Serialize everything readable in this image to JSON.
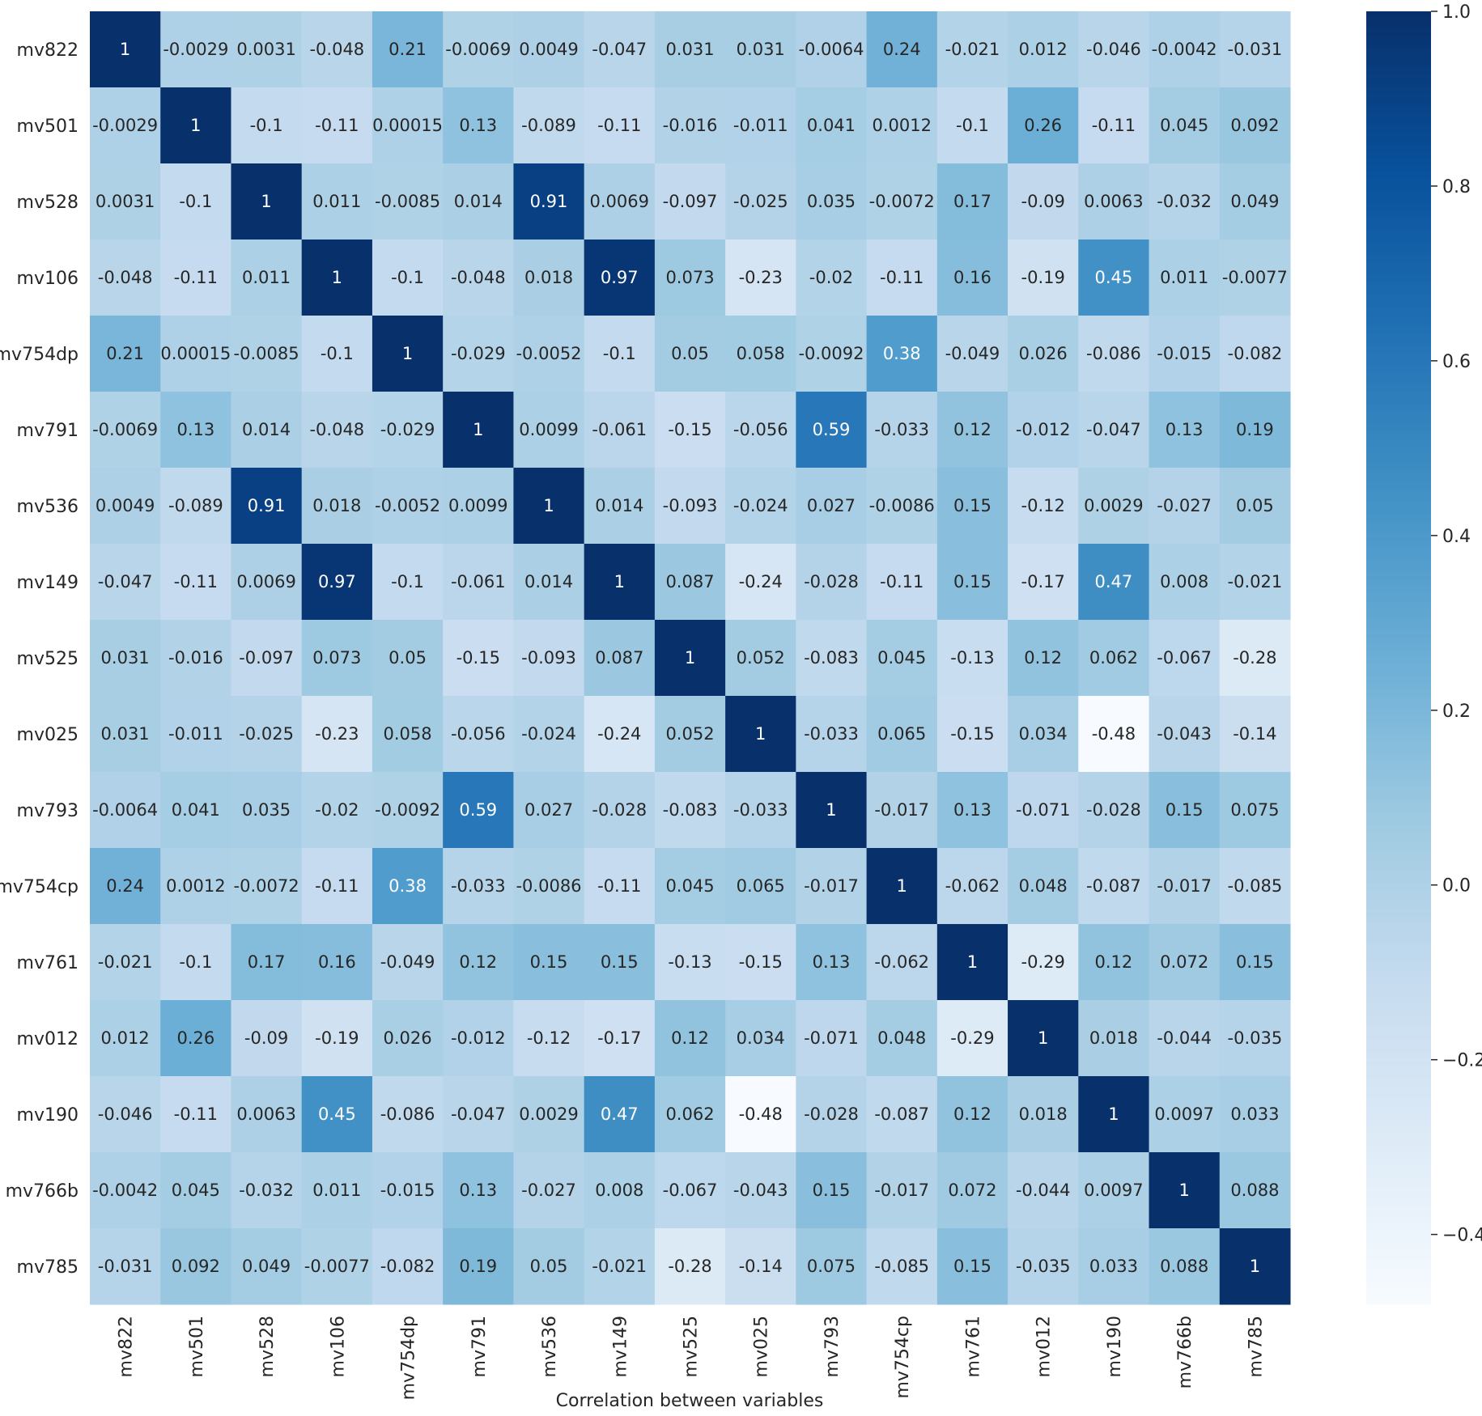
{
  "chart_data": {
    "type": "heatmap",
    "title": "",
    "xlabel": "Correlation between variables",
    "ylabel": "",
    "variables": [
      "mv822",
      "mv501",
      "mv528",
      "mv106",
      "mv754dp",
      "mv791",
      "mv536",
      "mv149",
      "mv525",
      "mv025",
      "mv793",
      "mv754cp",
      "mv761",
      "mv012",
      "mv190",
      "mv766b",
      "mv785"
    ],
    "values": [
      [
        "1",
        "-0.0029",
        "0.0031",
        "-0.048",
        "0.21",
        "-0.0069",
        "0.0049",
        "-0.047",
        "0.031",
        "0.031",
        "-0.0064",
        "0.24",
        "-0.021",
        "0.012",
        "-0.046",
        "-0.0042",
        "-0.031"
      ],
      [
        "-0.0029",
        "1",
        "-0.1",
        "-0.11",
        "0.00015",
        "0.13",
        "-0.089",
        "-0.11",
        "-0.016",
        "-0.011",
        "0.041",
        "0.0012",
        "-0.1",
        "0.26",
        "-0.11",
        "0.045",
        "0.092"
      ],
      [
        "0.0031",
        "-0.1",
        "1",
        "0.011",
        "-0.0085",
        "0.014",
        "0.91",
        "0.0069",
        "-0.097",
        "-0.025",
        "0.035",
        "-0.0072",
        "0.17",
        "-0.09",
        "0.0063",
        "-0.032",
        "0.049"
      ],
      [
        "-0.048",
        "-0.11",
        "0.011",
        "1",
        "-0.1",
        "-0.048",
        "0.018",
        "0.97",
        "0.073",
        "-0.23",
        "-0.02",
        "-0.11",
        "0.16",
        "-0.19",
        "0.45",
        "0.011",
        "-0.0077"
      ],
      [
        "0.21",
        "0.00015",
        "-0.0085",
        "-0.1",
        "1",
        "-0.029",
        "-0.0052",
        "-0.1",
        "0.05",
        "0.058",
        "-0.0092",
        "0.38",
        "-0.049",
        "0.026",
        "-0.086",
        "-0.015",
        "-0.082"
      ],
      [
        "-0.0069",
        "0.13",
        "0.014",
        "-0.048",
        "-0.029",
        "1",
        "0.0099",
        "-0.061",
        "-0.15",
        "-0.056",
        "0.59",
        "-0.033",
        "0.12",
        "-0.012",
        "-0.047",
        "0.13",
        "0.19"
      ],
      [
        "0.0049",
        "-0.089",
        "0.91",
        "0.018",
        "-0.0052",
        "0.0099",
        "1",
        "0.014",
        "-0.093",
        "-0.024",
        "0.027",
        "-0.0086",
        "0.15",
        "-0.12",
        "0.0029",
        "-0.027",
        "0.05"
      ],
      [
        "-0.047",
        "-0.11",
        "0.0069",
        "0.97",
        "-0.1",
        "-0.061",
        "0.014",
        "1",
        "0.087",
        "-0.24",
        "-0.028",
        "-0.11",
        "0.15",
        "-0.17",
        "0.47",
        "0.008",
        "-0.021"
      ],
      [
        "0.031",
        "-0.016",
        "-0.097",
        "0.073",
        "0.05",
        "-0.15",
        "-0.093",
        "0.087",
        "1",
        "0.052",
        "-0.083",
        "0.045",
        "-0.13",
        "0.12",
        "0.062",
        "-0.067",
        "-0.28"
      ],
      [
        "0.031",
        "-0.011",
        "-0.025",
        "-0.23",
        "0.058",
        "-0.056",
        "-0.024",
        "-0.24",
        "0.052",
        "1",
        "-0.033",
        "0.065",
        "-0.15",
        "0.034",
        "-0.48",
        "-0.043",
        "-0.14"
      ],
      [
        "-0.0064",
        "0.041",
        "0.035",
        "-0.02",
        "-0.0092",
        "0.59",
        "0.027",
        "-0.028",
        "-0.083",
        "-0.033",
        "1",
        "-0.017",
        "0.13",
        "-0.071",
        "-0.028",
        "0.15",
        "0.075"
      ],
      [
        "0.24",
        "0.0012",
        "-0.0072",
        "-0.11",
        "0.38",
        "-0.033",
        "-0.0086",
        "-0.11",
        "0.045",
        "0.065",
        "-0.017",
        "1",
        "-0.062",
        "0.048",
        "-0.087",
        "-0.017",
        "-0.085"
      ],
      [
        "-0.021",
        "-0.1",
        "0.17",
        "0.16",
        "-0.049",
        "0.12",
        "0.15",
        "0.15",
        "-0.13",
        "-0.15",
        "0.13",
        "-0.062",
        "1",
        "-0.29",
        "0.12",
        "0.072",
        "0.15"
      ],
      [
        "0.012",
        "0.26",
        "-0.09",
        "-0.19",
        "0.026",
        "-0.012",
        "-0.12",
        "-0.17",
        "0.12",
        "0.034",
        "-0.071",
        "0.048",
        "-0.29",
        "1",
        "0.018",
        "-0.044",
        "-0.035"
      ],
      [
        "-0.046",
        "-0.11",
        "0.0063",
        "0.45",
        "-0.086",
        "-0.047",
        "0.0029",
        "0.47",
        "0.062",
        "-0.48",
        "-0.028",
        "-0.087",
        "0.12",
        "0.018",
        "1",
        "0.0097",
        "0.033"
      ],
      [
        "-0.0042",
        "0.045",
        "-0.032",
        "0.011",
        "-0.015",
        "0.13",
        "-0.027",
        "0.008",
        "-0.067",
        "-0.043",
        "0.15",
        "-0.017",
        "0.072",
        "-0.044",
        "0.0097",
        "1",
        "0.088"
      ],
      [
        "-0.031",
        "0.092",
        "0.049",
        "-0.0077",
        "-0.082",
        "0.19",
        "0.05",
        "-0.021",
        "-0.28",
        "-0.14",
        "0.075",
        "-0.085",
        "0.15",
        "-0.035",
        "0.033",
        "0.088",
        "1"
      ]
    ],
    "colorbar": {
      "min": -0.48,
      "max": 1.0,
      "ticks": [
        "1.0",
        "0.8",
        "0.6",
        "0.4",
        "0.2",
        "0.0",
        "−0.2",
        "−0.4"
      ],
      "tick_values": [
        1.0,
        0.8,
        0.6,
        0.4,
        0.2,
        0.0,
        -0.2,
        -0.4
      ]
    },
    "colormap": "Blues",
    "colormap_stops": [
      "#f7fbff",
      "#deebf7",
      "#c6dbef",
      "#9ecae1",
      "#6baed6",
      "#4292c6",
      "#2171b5",
      "#08519c",
      "#08306b"
    ],
    "grid": false,
    "legend": "colorbar-right"
  }
}
